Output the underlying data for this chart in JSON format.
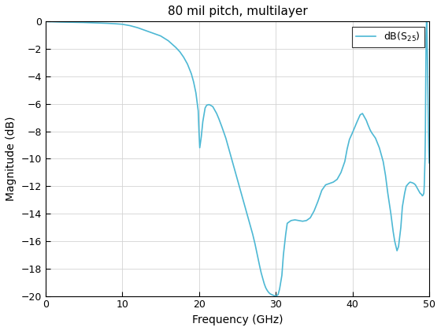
{
  "title": "80 mil pitch, multilayer",
  "xlabel": "Frequency (GHz)",
  "ylabel": "Magnitude (dB)",
  "xlim": [
    0,
    50
  ],
  "ylim": [
    -20,
    0
  ],
  "xticks": [
    0,
    10,
    20,
    30,
    40,
    50
  ],
  "yticks": [
    0,
    -2,
    -4,
    -6,
    -8,
    -10,
    -12,
    -14,
    -16,
    -18,
    -20
  ],
  "line_color": "#4db8d4",
  "line_width": 1.2,
  "x": [
    0.0,
    0.5,
    1.0,
    2.0,
    3.0,
    4.0,
    5.0,
    6.0,
    7.0,
    8.0,
    9.0,
    10.0,
    11.0,
    12.0,
    13.0,
    14.0,
    15.0,
    16.0,
    17.0,
    17.5,
    18.0,
    18.5,
    19.0,
    19.3,
    19.6,
    19.9,
    20.0,
    20.1,
    20.3,
    20.5,
    20.8,
    21.0,
    21.3,
    21.5,
    21.8,
    22.0,
    22.3,
    22.6,
    23.0,
    23.5,
    24.0,
    24.5,
    25.0,
    25.5,
    26.0,
    26.5,
    27.0,
    27.3,
    27.6,
    27.9,
    28.1,
    28.3,
    28.5,
    28.7,
    28.9,
    29.1,
    29.3,
    29.5,
    29.7,
    29.9,
    30.0,
    30.1,
    30.3,
    30.5,
    30.8,
    31.0,
    31.3,
    31.5,
    32.0,
    32.5,
    33.0,
    33.5,
    34.0,
    34.5,
    35.0,
    35.5,
    36.0,
    36.5,
    37.0,
    37.5,
    38.0,
    38.5,
    39.0,
    39.3,
    39.6,
    40.0,
    40.3,
    40.6,
    41.0,
    41.3,
    41.5,
    41.8,
    42.0,
    42.3,
    42.5,
    43.0,
    43.5,
    44.0,
    44.3,
    44.6,
    45.0,
    45.3,
    45.5,
    45.8,
    46.0,
    46.3,
    46.5,
    46.8,
    47.0,
    47.3,
    47.5,
    47.8,
    48.0,
    48.2,
    48.4,
    48.6,
    48.8,
    49.0,
    49.1,
    49.2,
    49.3,
    49.35,
    49.4,
    49.45,
    49.5,
    49.55,
    49.6,
    49.65,
    49.7,
    49.75,
    49.8,
    49.85,
    49.9,
    49.95,
    50.0
  ],
  "y": [
    0.0,
    -0.01,
    -0.02,
    -0.04,
    -0.05,
    -0.06,
    -0.07,
    -0.09,
    -0.11,
    -0.13,
    -0.16,
    -0.2,
    -0.3,
    -0.45,
    -0.65,
    -0.85,
    -1.05,
    -1.4,
    -1.9,
    -2.2,
    -2.6,
    -3.1,
    -3.8,
    -4.4,
    -5.2,
    -6.5,
    -8.0,
    -9.2,
    -8.4,
    -7.3,
    -6.3,
    -6.1,
    -6.05,
    -6.1,
    -6.2,
    -6.4,
    -6.7,
    -7.1,
    -7.7,
    -8.5,
    -9.5,
    -10.5,
    -11.5,
    -12.5,
    -13.5,
    -14.5,
    -15.5,
    -16.2,
    -17.0,
    -17.8,
    -18.3,
    -18.7,
    -19.1,
    -19.4,
    -19.6,
    -19.75,
    -19.85,
    -19.9,
    -19.95,
    -19.98,
    -20.0,
    -19.98,
    -19.9,
    -19.5,
    -18.5,
    -17.0,
    -15.5,
    -14.7,
    -14.5,
    -14.45,
    -14.5,
    -14.55,
    -14.5,
    -14.3,
    -13.8,
    -13.1,
    -12.3,
    -11.9,
    -11.8,
    -11.7,
    -11.5,
    -11.0,
    -10.2,
    -9.3,
    -8.6,
    -8.1,
    -7.7,
    -7.3,
    -6.8,
    -6.7,
    -6.9,
    -7.2,
    -7.5,
    -7.9,
    -8.1,
    -8.5,
    -9.2,
    -10.2,
    -11.2,
    -12.5,
    -14.0,
    -15.3,
    -16.0,
    -16.7,
    -16.4,
    -15.0,
    -13.5,
    -12.5,
    -12.0,
    -11.8,
    -11.7,
    -11.75,
    -11.8,
    -11.9,
    -12.1,
    -12.3,
    -12.5,
    -12.6,
    -12.7,
    -12.65,
    -12.5,
    -12.0,
    -11.0,
    -10.0,
    -8.0,
    -4.0,
    -1.0,
    0.0,
    -0.5,
    -2.0,
    -4.0,
    -6.0,
    -8.0,
    -9.5,
    -10.3
  ]
}
